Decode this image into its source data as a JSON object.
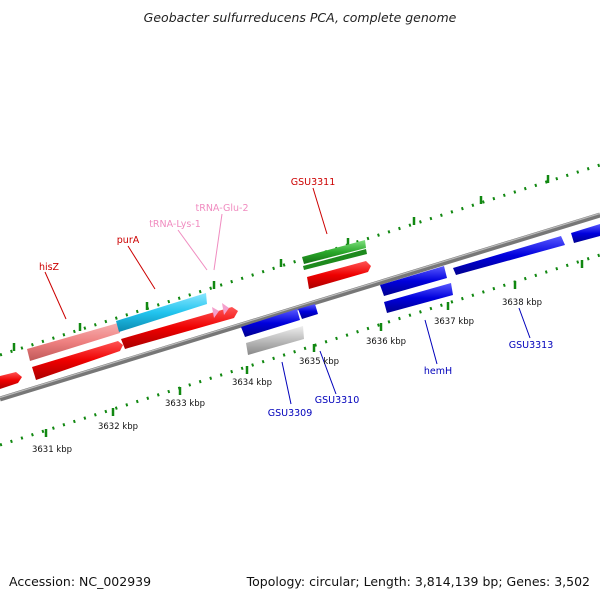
{
  "title": "Geobacter sulfurreducens PCA, complete genome",
  "footer": {
    "accession": "Accession: NC_002939",
    "info": "Topology: circular; Length: 3,814,139 bp; Genes: 3,502"
  },
  "scale_labels": [
    {
      "text": "3631 kbp"
    },
    {
      "text": "3632 kbp"
    },
    {
      "text": "3633 kbp"
    },
    {
      "text": "3634 kbp"
    },
    {
      "text": "3635 kbp"
    },
    {
      "text": "3636 kbp"
    },
    {
      "text": "3637 kbp"
    },
    {
      "text": "3638 kbp"
    }
  ],
  "gene_labels": [
    {
      "text": "hisZ",
      "color": "#cc0000"
    },
    {
      "text": "purA",
      "color": "#cc0000"
    },
    {
      "text": "tRNA-Lys-1",
      "color": "#f08cc0"
    },
    {
      "text": "tRNA-Glu-2",
      "color": "#f08cc0"
    },
    {
      "text": "GSU3311",
      "color": "#cc0000"
    },
    {
      "text": "GSU3309",
      "color": "#0000bb"
    },
    {
      "text": "GSU3310",
      "color": "#0000bb"
    },
    {
      "text": "hemH",
      "color": "#0000bb"
    },
    {
      "text": "GSU3313",
      "color": "#0000bb"
    }
  ],
  "colors": {
    "cds": "#ee0000",
    "gene_forward": "#ee8080",
    "gene_cyan": "#22c4ee",
    "trna": "#f4a0cc",
    "green": "#2aa82a",
    "blue": "#0000dd",
    "grey": "#bbbbbb",
    "backbone": "#777777",
    "tick": "#118811"
  }
}
